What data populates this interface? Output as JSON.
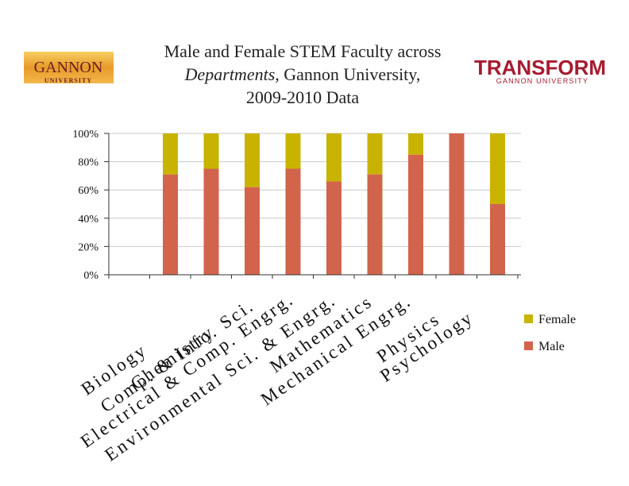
{
  "title": {
    "line1": "Male and Female STEM Faculty across",
    "line2_em": "Departments",
    "line2_rest": ", Gannon University,",
    "line3": "2009-2010 Data"
  },
  "logos": {
    "left": {
      "main": "GANNON",
      "sub": "UNIVERSITY"
    },
    "right": {
      "main": "TRANSFORM",
      "sub": "GANNON UNIVERSITY"
    }
  },
  "colors": {
    "female": "#c8b400",
    "male": "#d2644c",
    "grid": "#c8c8c8"
  },
  "chart_data": {
    "type": "bar",
    "stacked": "percent",
    "categories": [
      "Biology",
      "Chemistry",
      "Comp. & Info. Sci.",
      "Electrical & Comp. Engrg.",
      "Environmental Sci. & Engrg.",
      "Mathematics",
      "Mechanical Engrg.",
      "Physics",
      "Psychology"
    ],
    "series": [
      {
        "name": "Male",
        "values": [
          71,
          75,
          62,
          75,
          66,
          71,
          85,
          100,
          50
        ]
      },
      {
        "name": "Female",
        "values": [
          29,
          25,
          38,
          25,
          34,
          29,
          15,
          0,
          50
        ]
      }
    ],
    "yticks": [
      "0%",
      "20%",
      "40%",
      "60%",
      "80%",
      "100%"
    ],
    "ylim": [
      0,
      100
    ],
    "grid": true,
    "legend": "right",
    "legend_entries": [
      "Female",
      "Male"
    ]
  }
}
